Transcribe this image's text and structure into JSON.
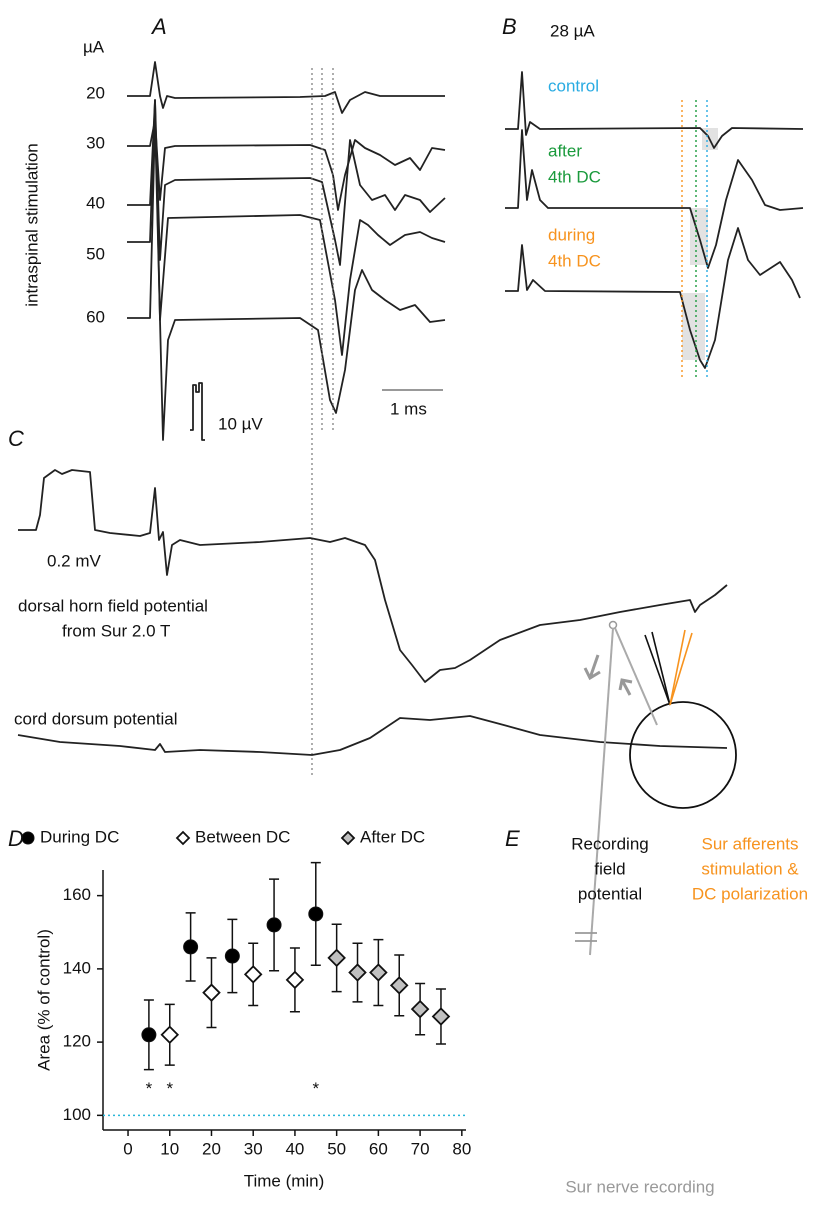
{
  "panel_labels": [
    "A",
    "B",
    "C",
    "D",
    "E"
  ],
  "panel_a": {
    "unit": "µA",
    "intensities": [
      20,
      30,
      40,
      50,
      60
    ],
    "y_label": "intraspinal stimulation",
    "scale_amplitude": "10 µV",
    "scale_time": "1 ms"
  },
  "panel_b": {
    "intensity": "28 µA",
    "control": "control",
    "after": [
      "after",
      "4th DC"
    ],
    "during": [
      "during",
      "4th DC"
    ]
  },
  "panel_c": {
    "scale": "0.2 mV",
    "field_label": [
      "dorsal horn field potential",
      "from Sur 2.0 T"
    ],
    "dorsum_label": "cord dorsum potential"
  },
  "chart_data": {
    "type": "scatter",
    "xlabel": "Time (min)",
    "ylabel": "Area (% of control)",
    "xlim": [
      -6,
      81
    ],
    "ylim": [
      96,
      167
    ],
    "xticks": [
      0,
      10,
      20,
      30,
      40,
      50,
      60,
      70,
      80
    ],
    "yticks": [
      100,
      120,
      140,
      160
    ],
    "grid": false,
    "legend": "top",
    "series": [
      {
        "name": "During DC",
        "color": "#000000",
        "marker": "circle",
        "x": [
          5,
          15,
          25,
          35,
          45
        ],
        "values": [
          122,
          146,
          143.5,
          152,
          155
        ],
        "errors": [
          9.5,
          9.3,
          10,
          12.5,
          14
        ]
      },
      {
        "name": "Between DC",
        "color": "#ffffff",
        "marker": "diamond",
        "x": [
          10,
          20,
          30,
          40
        ],
        "values": [
          122,
          133.5,
          138.5,
          137
        ],
        "errors": [
          8.3,
          9.5,
          8.5,
          8.7
        ]
      },
      {
        "name": "After DC",
        "color": "#c0c0c0",
        "marker": "diamond",
        "x": [
          50,
          55,
          60,
          65,
          70,
          75
        ],
        "values": [
          143,
          139,
          139,
          135.5,
          129,
          127
        ],
        "errors": [
          9.2,
          8,
          9,
          8.3,
          7,
          7.5
        ]
      }
    ],
    "annotations": [
      {
        "x": 5,
        "y": 107,
        "text": "*"
      },
      {
        "x": 10,
        "y": 107,
        "text": "*"
      },
      {
        "x": 45,
        "y": 107,
        "text": "*"
      }
    ],
    "reference_line": {
      "y": 100,
      "color": "#29b6d8"
    }
  },
  "panel_e": {
    "recording_label": [
      "Recording",
      "field",
      "potential"
    ],
    "stimulation_label": [
      "Sur afferents",
      "stimulation &",
      "DC polarization"
    ],
    "nerve_label": "Sur nerve recording"
  }
}
